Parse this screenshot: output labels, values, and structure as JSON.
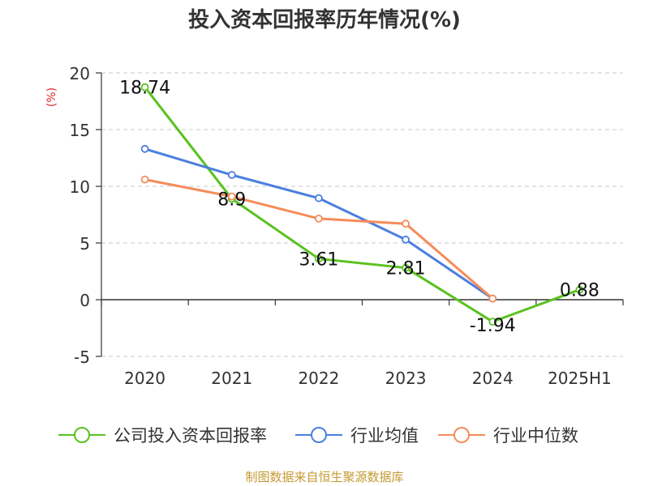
{
  "title": "投入资本回报率历年情况(%)",
  "unit_label": "(%)",
  "footer": "制图数据来自恒生聚源数据库",
  "chart_data": {
    "type": "line",
    "categories": [
      "2020",
      "2021",
      "2022",
      "2023",
      "2024",
      "2025H1"
    ],
    "ylim": [
      -5,
      20
    ],
    "yticks": [
      -5,
      0,
      5,
      10,
      15,
      20
    ],
    "grid": true,
    "legend_position": "bottom",
    "series": [
      {
        "name": "公司投入资本回报率",
        "color": "#5ac21f",
        "values": [
          18.74,
          8.9,
          3.61,
          2.81,
          -1.94,
          0.88
        ],
        "labels": true
      },
      {
        "name": "行业均值",
        "color": "#4b7fdf",
        "values": [
          13.3,
          11.0,
          8.95,
          5.3,
          0.1,
          null
        ],
        "labels": false
      },
      {
        "name": "行业中位数",
        "color": "#f58c5a",
        "values": [
          10.6,
          9.1,
          7.15,
          6.7,
          0.1,
          null
        ],
        "labels": false
      }
    ]
  }
}
